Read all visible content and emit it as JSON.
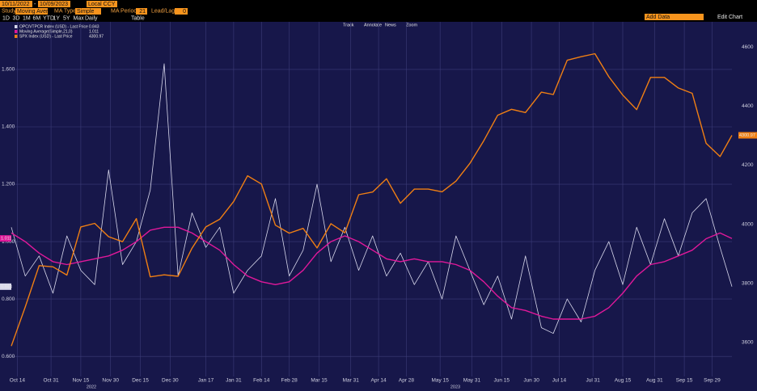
{
  "toolbar": {
    "start_date": "10/11/2022",
    "separator": "-",
    "end_date": "10/09/2023",
    "currency": "Local CCY",
    "study_label": "Study",
    "study": "Moving Aver",
    "ma_type_label": "MA Type",
    "ma_type": "Simple",
    "ma_period_label": "MA Period",
    "ma_period": 21,
    "lead_lag_label": "Lead/Lag",
    "lead_lag": 0,
    "add_data": "Add Data",
    "edit_chart": "Edit Chart",
    "periods": [
      "1D",
      "3D",
      "1M",
      "6M",
      "YTD",
      "1Y",
      "5Y",
      "Max"
    ],
    "frequency": "Daily",
    "table": "Table",
    "tools": [
      "Track",
      "Annotate",
      "News",
      "Zoom"
    ]
  },
  "chart_data": {
    "type": "line",
    "grid": true,
    "x": [
      "2022-10-11",
      "2022-10-18",
      "2022-10-25",
      "2022-11-01",
      "2022-11-08",
      "2022-11-15",
      "2022-11-22",
      "2022-11-29",
      "2022-12-06",
      "2022-12-13",
      "2022-12-20",
      "2022-12-27",
      "2023-01-03",
      "2023-01-10",
      "2023-01-17",
      "2023-01-24",
      "2023-01-31",
      "2023-02-07",
      "2023-02-14",
      "2023-02-21",
      "2023-02-28",
      "2023-03-07",
      "2023-03-14",
      "2023-03-21",
      "2023-03-28",
      "2023-04-04",
      "2023-04-11",
      "2023-04-18",
      "2023-04-25",
      "2023-05-02",
      "2023-05-09",
      "2023-05-16",
      "2023-05-23",
      "2023-05-30",
      "2023-06-06",
      "2023-06-13",
      "2023-06-20",
      "2023-06-27",
      "2023-07-05",
      "2023-07-11",
      "2023-07-18",
      "2023-07-25",
      "2023-08-01",
      "2023-08-08",
      "2023-08-15",
      "2023-08-22",
      "2023-08-29",
      "2023-09-05",
      "2023-09-12",
      "2023-09-19",
      "2023-09-26",
      "2023-10-03",
      "2023-10-09"
    ],
    "xlim": [
      "2022-10-11",
      "2023-10-09"
    ],
    "xticks": [
      {
        "value": "2022-10-14",
        "label": "Oct 14"
      },
      {
        "value": "2022-10-31",
        "label": "Oct 31"
      },
      {
        "value": "2022-11-15",
        "label": "Nov 15"
      },
      {
        "value": "2022-11-30",
        "label": "Nov 30"
      },
      {
        "value": "2022-12-15",
        "label": "Dec 15"
      },
      {
        "value": "2022-12-30",
        "label": "Dec 30"
      },
      {
        "value": "2023-01-17",
        "label": "Jan 17"
      },
      {
        "value": "2023-01-31",
        "label": "Jan 31"
      },
      {
        "value": "2023-02-14",
        "label": "Feb 14"
      },
      {
        "value": "2023-02-28",
        "label": "Feb 28"
      },
      {
        "value": "2023-03-15",
        "label": "Mar 15"
      },
      {
        "value": "2023-03-31",
        "label": "Mar 31"
      },
      {
        "value": "2023-04-14",
        "label": "Apr 14"
      },
      {
        "value": "2023-04-28",
        "label": "Apr 28"
      },
      {
        "value": "2023-05-15",
        "label": "May 15"
      },
      {
        "value": "2023-05-31",
        "label": "May 31"
      },
      {
        "value": "2023-06-15",
        "label": "Jun 15"
      },
      {
        "value": "2023-06-30",
        "label": "Jun 30"
      },
      {
        "value": "2023-07-14",
        "label": "Jul 14"
      },
      {
        "value": "2023-07-31",
        "label": "Jul 31"
      },
      {
        "value": "2023-08-15",
        "label": "Aug 15"
      },
      {
        "value": "2023-08-31",
        "label": "Aug 31"
      },
      {
        "value": "2023-09-15",
        "label": "Sep 15"
      },
      {
        "value": "2023-09-29",
        "label": "Sep 29"
      }
    ],
    "year_labels": [
      "2022",
      "2023"
    ],
    "ylim": [
      0.53,
      1.766
    ],
    "yticks": [
      {
        "value": 0.6,
        "label": "0.600"
      },
      {
        "value": 0.8,
        "label": "0.800"
      },
      {
        "value": 1.0,
        "label": "1.000"
      },
      {
        "value": 1.2,
        "label": "1.200"
      },
      {
        "value": 1.4,
        "label": "1.400"
      },
      {
        "value": 1.6,
        "label": "1.600"
      }
    ],
    "y2lim": [
      3485,
      4685
    ],
    "y2ticks": [
      3600,
      3800,
      4000,
      4200,
      4400,
      4600
    ],
    "series": [
      {
        "name": "OPC/VTPCR Index (USD) - Last Price",
        "color": "#d8d8ec",
        "values": [
          1.05,
          0.88,
          0.95,
          0.82,
          1.02,
          0.9,
          0.85,
          1.25,
          0.92,
          1.0,
          1.18,
          1.62,
          0.88,
          1.1,
          0.98,
          1.05,
          0.82,
          0.9,
          0.95,
          1.15,
          0.88,
          0.97,
          1.2,
          0.93,
          1.05,
          0.9,
          1.02,
          0.88,
          0.96,
          0.85,
          0.93,
          0.8,
          1.02,
          0.9,
          0.78,
          0.88,
          0.73,
          0.95,
          0.7,
          0.68,
          0.8,
          0.72,
          0.9,
          1.0,
          0.85,
          1.05,
          0.92,
          1.08,
          0.95,
          1.1,
          1.15,
          0.98,
          0.843
        ]
      },
      {
        "name": "Moving Average(Simple,21,0)",
        "color": "#e0189a",
        "values": [
          1.03,
          1.0,
          0.96,
          0.93,
          0.92,
          0.93,
          0.94,
          0.95,
          0.97,
          1.0,
          1.04,
          1.05,
          1.05,
          1.03,
          1.0,
          0.97,
          0.92,
          0.88,
          0.86,
          0.85,
          0.86,
          0.9,
          0.96,
          1.0,
          1.02,
          1.0,
          0.97,
          0.94,
          0.93,
          0.94,
          0.93,
          0.93,
          0.92,
          0.9,
          0.86,
          0.81,
          0.77,
          0.76,
          0.74,
          0.73,
          0.73,
          0.73,
          0.74,
          0.77,
          0.82,
          0.88,
          0.92,
          0.93,
          0.95,
          0.97,
          1.01,
          1.03,
          1.011
        ]
      },
      {
        "name": "SPX Index (USD) - Last Price",
        "color": "#f07f13",
        "axis": "y2",
        "values": [
          3588,
          3720,
          3860,
          3856,
          3828,
          3991,
          4003,
          3958,
          3941,
          4019,
          3822,
          3829,
          3824,
          3919,
          3991,
          4017,
          4077,
          4164,
          4136,
          3997,
          3970,
          3986,
          3920,
          4002,
          3971,
          4100,
          4109,
          4154,
          4071,
          4119,
          4119,
          4110,
          4146,
          4206,
          4283,
          4369,
          4389,
          4378,
          4447,
          4439,
          4555,
          4567,
          4577,
          4499,
          4437,
          4388,
          4497,
          4497,
          4461,
          4443,
          4274,
          4229,
          4300.97
        ]
      }
    ]
  }
}
